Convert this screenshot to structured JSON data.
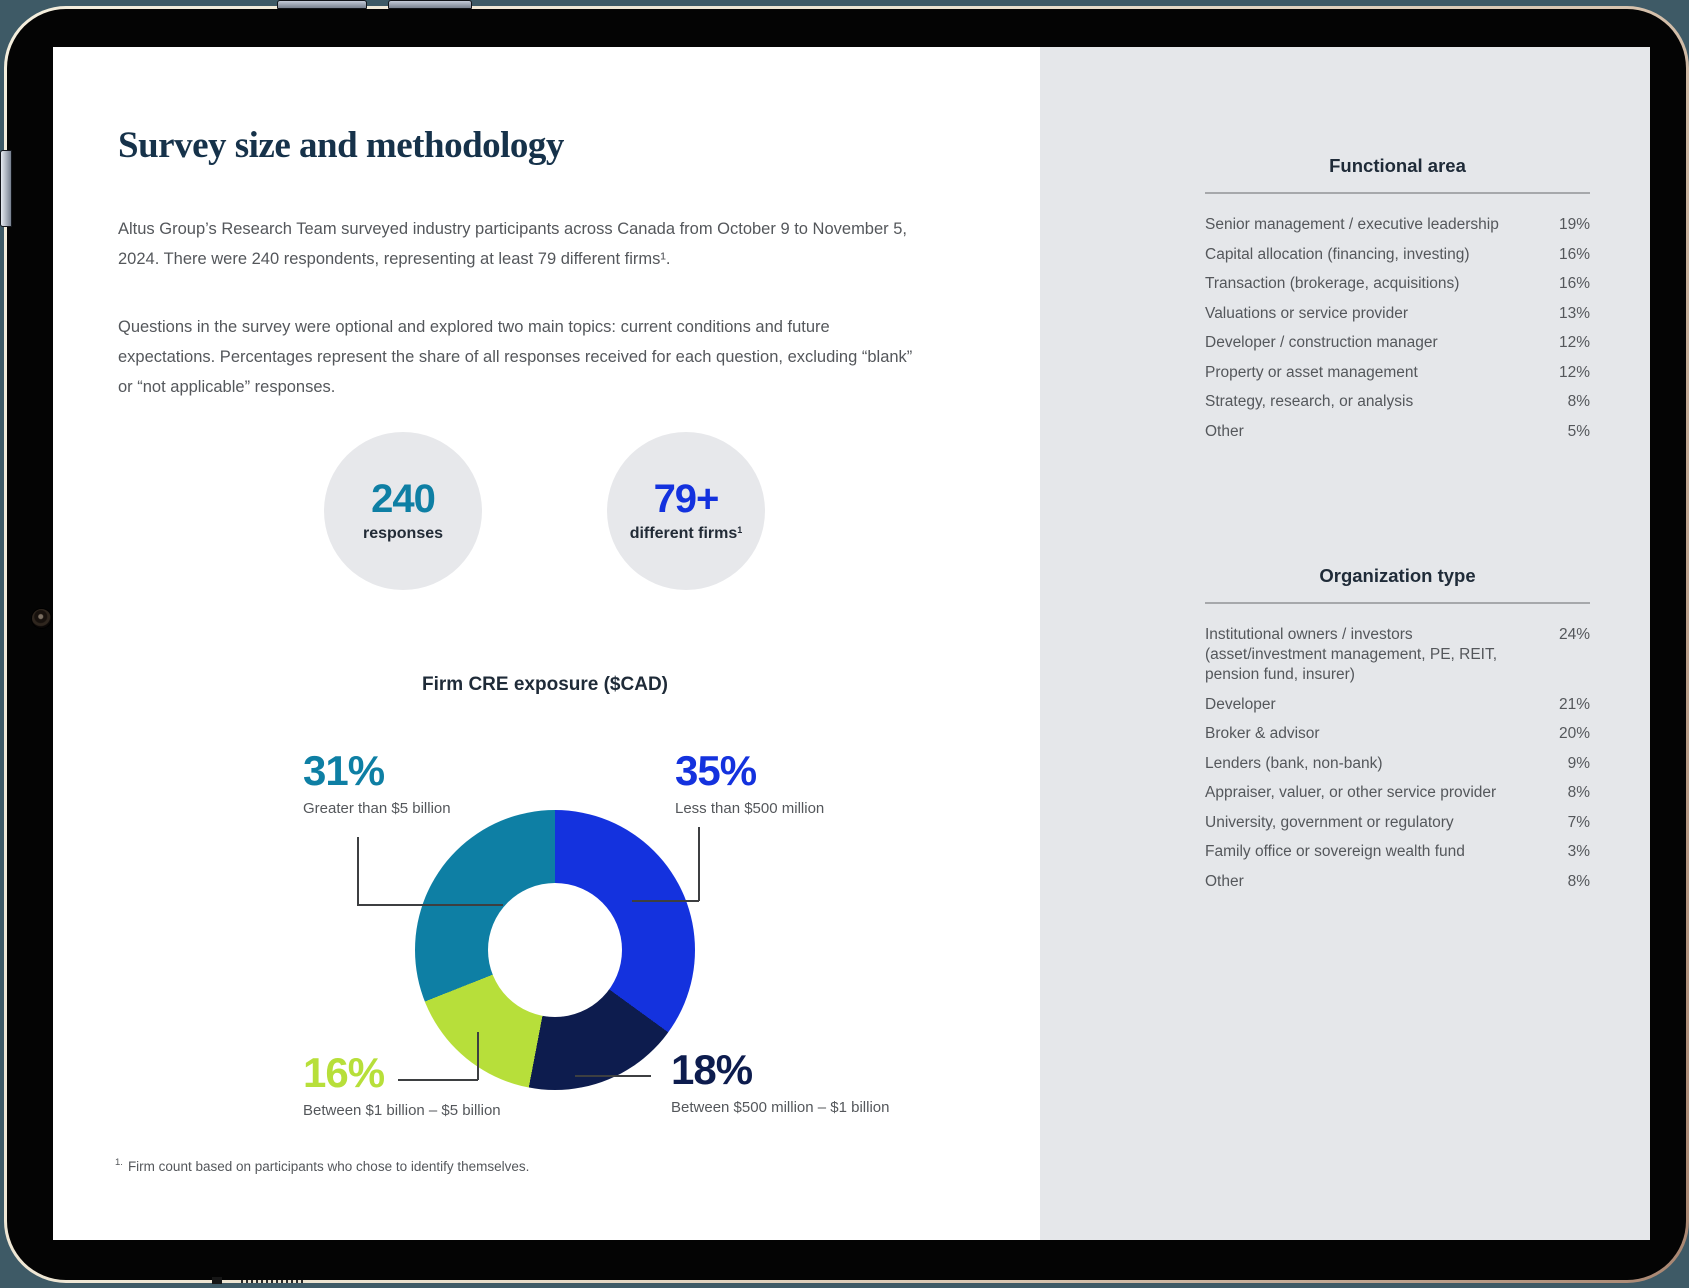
{
  "doc": {
    "title": "Survey size and methodology",
    "paragraph1": "Altus Group’s Research Team surveyed industry participants across Canada from October 9 to November 5, 2024. There were 240 respondents, representing at least 79 different firms¹.",
    "paragraph2": "Questions in the survey were optional and explored two main topics: current conditions and future expectations. Percentages represent the share of all responses received for each question, excluding “blank” or “not applicable” responses.",
    "footnote_marker": "1.",
    "footnote_text": "Firm count based on participants who chose to identify themselves."
  },
  "stats": [
    {
      "value": "240",
      "label": "responses",
      "sup": "",
      "color": "#0e7fa4"
    },
    {
      "value": "79+",
      "label": "different firms",
      "sup": "1",
      "color": "#1432de"
    }
  ],
  "chart_data": {
    "type": "pie",
    "subtype": "donut",
    "title": "Firm CRE exposure ($CAD)",
    "start_angle_deg": 0,
    "direction": "clockwise",
    "inner_radius_pct": 48,
    "slices": [
      {
        "label": "Less than $500 million",
        "value": 35,
        "color": "#1432de"
      },
      {
        "label": "Between $500 million – $1 billion",
        "value": 18,
        "color": "#0d1c4e"
      },
      {
        "label": "Between $1 billion – $5 billion",
        "value": 16,
        "color": "#b7df3a"
      },
      {
        "label": "Greater than $5 billion",
        "value": 31,
        "color": "#0e7fa4"
      }
    ]
  },
  "panel": {
    "sections": [
      {
        "title": "Functional area",
        "rows": [
          {
            "label": "Senior management / executive leadership",
            "value": 19
          },
          {
            "label": "Capital allocation (financing, investing)",
            "value": 16
          },
          {
            "label": "Transaction (brokerage, acquisitions)",
            "value": 16
          },
          {
            "label": "Valuations or service provider",
            "value": 13
          },
          {
            "label": "Developer / construction manager",
            "value": 12
          },
          {
            "label": "Property or asset management",
            "value": 12
          },
          {
            "label": "Strategy, research, or analysis",
            "value": 8
          },
          {
            "label": "Other",
            "value": 5
          }
        ]
      },
      {
        "title": "Organization type",
        "rows": [
          {
            "label": "Institutional owners / investors (asset/investment management, PE, REIT, pension fund, insurer)",
            "value": 24
          },
          {
            "label": "Developer",
            "value": 21
          },
          {
            "label": "Broker & advisor",
            "value": 20
          },
          {
            "label": "Lenders (bank, non-bank)",
            "value": 9
          },
          {
            "label": "Appraiser, valuer, or other service provider",
            "value": 8
          },
          {
            "label": "University, government or regulatory",
            "value": 7
          },
          {
            "label": "Family office or sovereign wealth fund",
            "value": 3
          },
          {
            "label": "Other",
            "value": 8
          }
        ]
      }
    ]
  }
}
